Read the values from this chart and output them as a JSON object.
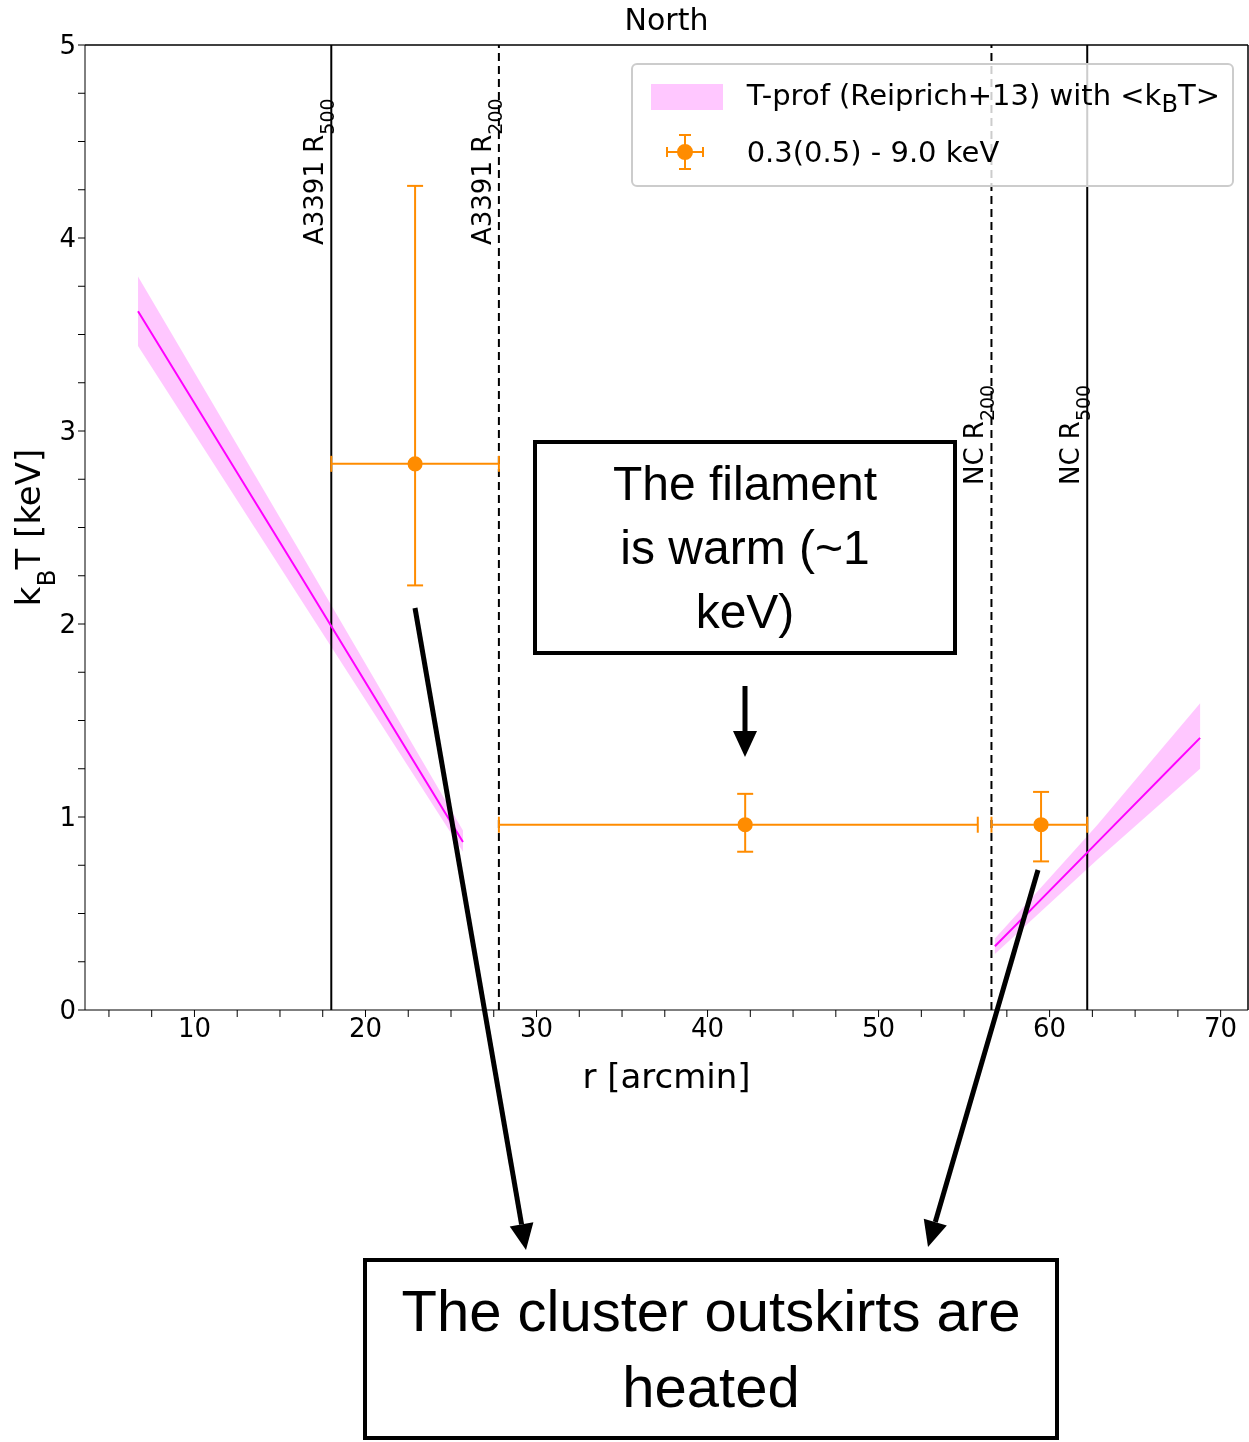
{
  "chart_data": {
    "type": "line",
    "title": "North",
    "xlabel": "r [arcmin]",
    "ylabel": "k$_{B}$T [keV]",
    "xlim": [
      3.6,
      71.6
    ],
    "ylim": [
      0,
      5
    ],
    "xticks": [
      {
        "value": 5,
        "label": null
      },
      {
        "value": 7.5,
        "label": null
      },
      10,
      {
        "value": 12.5,
        "label": null
      },
      {
        "value": 15,
        "label": null
      },
      {
        "value": 17.5,
        "label": null
      },
      20,
      {
        "value": 22.5,
        "label": null
      },
      {
        "value": 25,
        "label": null
      },
      {
        "value": 27.5,
        "label": null
      },
      30,
      {
        "value": 32.5,
        "label": null
      },
      {
        "value": 35,
        "label": null
      },
      {
        "value": 37.5,
        "label": null
      },
      40,
      {
        "value": 42.5,
        "label": null
      },
      {
        "value": 45,
        "label": null
      },
      {
        "value": 47.5,
        "label": null
      },
      50,
      {
        "value": 52.5,
        "label": null
      },
      {
        "value": 55,
        "label": null
      },
      {
        "value": 57.5,
        "label": null
      },
      60,
      {
        "value": 62.5,
        "label": null
      },
      {
        "value": 65,
        "label": null
      },
      {
        "value": 67.5,
        "label": null
      },
      70
    ],
    "yticks": [
      0,
      {
        "value": 0.25,
        "label": null
      },
      {
        "value": 0.5,
        "label": null
      },
      {
        "value": 0.75,
        "label": null
      },
      1,
      {
        "value": 1.25,
        "label": null
      },
      {
        "value": 1.5,
        "label": null
      },
      {
        "value": 1.75,
        "label": null
      },
      2,
      {
        "value": 2.25,
        "label": null
      },
      {
        "value": 2.5,
        "label": null
      },
      {
        "value": 2.75,
        "label": null
      },
      3,
      {
        "value": 3.25,
        "label": null
      },
      {
        "value": 3.5,
        "label": null
      },
      {
        "value": 3.75,
        "label": null
      },
      4,
      {
        "value": 4.25,
        "label": null
      },
      {
        "value": 4.5,
        "label": null
      },
      {
        "value": 4.75,
        "label": null
      },
      5
    ],
    "legend": "top right",
    "series": [
      {
        "name": "T-prof (Reiprich+13) with <k$_{B}$T>",
        "color": "#ff00ff",
        "x": [
          6.7,
          16.2,
          25.7
        ],
        "values": [
          3.62,
          2.25,
          0.87
        ],
        "lower": [
          3.44,
          2.13,
          0.82
        ],
        "upper": [
          3.8,
          2.37,
          0.93
        ]
      },
      {
        "color": "#ff00ff",
        "x": [
          56.8,
          62.8,
          68.8
        ],
        "values": [
          0.33,
          0.87,
          1.41
        ],
        "lower": [
          0.29,
          0.78,
          1.25
        ],
        "upper": [
          0.37,
          0.96,
          1.59
        ]
      },
      {
        "name": "0.3(0.5) - 9.0 keV",
        "type": "scatter",
        "color": "#ff8c00",
        "marker": "circle",
        "x": [
          22.9,
          42.2,
          59.5
        ],
        "values": [
          2.83,
          0.96,
          0.96
        ],
        "errors": [
          [
            2.2,
            4.27
          ],
          [
            0.82,
            1.12
          ],
          [
            0.77,
            1.13
          ]
        ],
        "xerrors": [
          [
            18.0,
            27.8
          ],
          [
            27.8,
            55.8
          ],
          [
            56.6,
            62.2
          ]
        ]
      }
    ],
    "ref_lines": [
      {
        "axis": "x",
        "value": 18.0,
        "label": "A3391 R$_{500}$",
        "line_style": "solid",
        "color": "#000000"
      },
      {
        "axis": "x",
        "value": 27.8,
        "label": "A3391 R$_{200}$",
        "line_style": "dashed",
        "color": "#000000"
      },
      {
        "axis": "x",
        "value": 56.6,
        "label": "NC R$_{200}$",
        "line_style": "dashed",
        "color": "#000000"
      },
      {
        "axis": "x",
        "value": 62.2,
        "label": "NC R$_{500}$",
        "line_style": "solid",
        "color": "#000000"
      }
    ],
    "annotations": [
      "The filament is warm (~1 keV)",
      "The cluster outskirts are heated"
    ]
  }
}
